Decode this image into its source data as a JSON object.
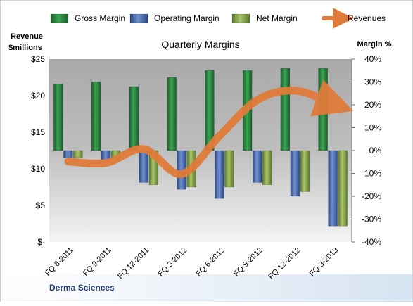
{
  "chart_data": {
    "type": "bar",
    "title": "Quarterly Margins",
    "left_axis_label": [
      "Revenue",
      "$millions"
    ],
    "right_axis_label": "Margin %",
    "footer": "Derma Sciences",
    "categories": [
      "FQ 6-2011",
      "FQ 9-2011",
      "FQ 12-2011",
      "FQ 3-2012",
      "FQ 6-2012",
      "FQ 9-2012",
      "FQ 12-2012",
      "FQ 3-2013"
    ],
    "left_axis": {
      "min": 0,
      "max": 25,
      "ticks": [
        "$-",
        "$5",
        "$10",
        "$15",
        "$20",
        "$25"
      ]
    },
    "right_axis": {
      "min": -40,
      "max": 40,
      "ticks": [
        "-40%",
        "-30%",
        "-20%",
        "-10%",
        "0%",
        "10%",
        "20%",
        "30%",
        "40%"
      ]
    },
    "legend_position": "top",
    "series": [
      {
        "name": "Gross Margin",
        "kind": "bar",
        "axis": "right",
        "color": "#2e8b3e",
        "values": [
          29,
          30,
          28,
          32,
          35,
          35,
          36,
          36
        ]
      },
      {
        "name": "Operating Margin",
        "kind": "bar",
        "axis": "right",
        "color": "#4f72b8",
        "values": [
          -3,
          -4,
          -14,
          -17,
          -21,
          -14,
          -20,
          -33
        ]
      },
      {
        "name": "Net Margin",
        "kind": "bar",
        "axis": "right",
        "color": "#8faa4e",
        "values": [
          -3,
          -4,
          -15,
          -16,
          -16,
          -15,
          -18,
          -33
        ]
      },
      {
        "name": "Revenues",
        "kind": "line",
        "axis": "left",
        "color": "#e07b39",
        "values": [
          11.0,
          10.8,
          12.7,
          9.3,
          14.5,
          19.4,
          20.7,
          18.9
        ]
      }
    ]
  }
}
